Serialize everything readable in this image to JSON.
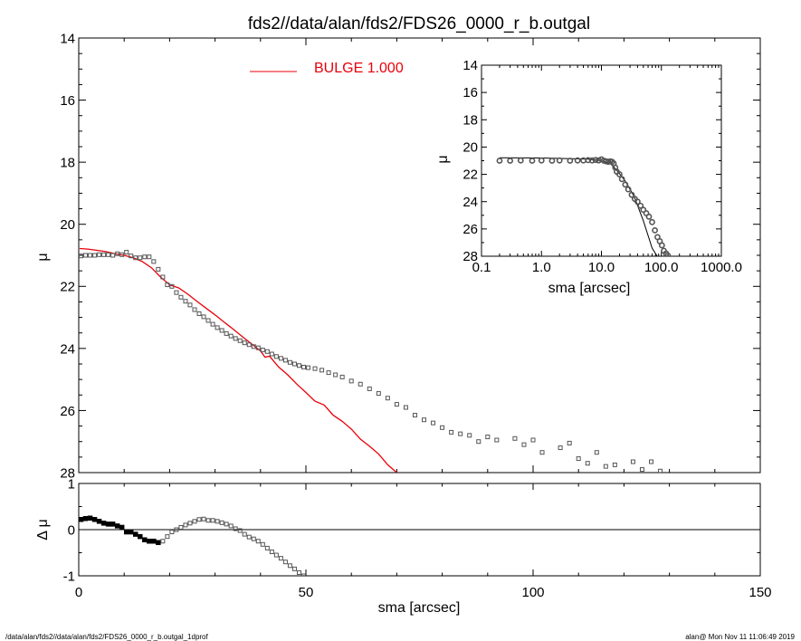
{
  "title": "fds2//data/alan/fds2/FDS26_0000_r_b.outgal",
  "footer": {
    "left": "/data/alan/fds2//data/alan/fds2/FDS26_0000_r_b.outgal_1dprof",
    "right": "alan@  Mon Nov 11 11:06:49 2019"
  },
  "colors": {
    "model": "#e8000b",
    "data": "#555555",
    "residual": "#000000"
  },
  "chart_data": [
    {
      "type": "scatter",
      "panel": "main",
      "title": "fds2//data/alan/fds2/FDS26_0000_r_b.outgal",
      "xlabel": "sma [arcsec]",
      "ylabel": "μ",
      "xlim": [
        0,
        150
      ],
      "ylim": [
        28,
        14
      ],
      "xticks": [
        "0",
        "50",
        "100",
        "150"
      ],
      "yticks": [
        "14",
        "16",
        "18",
        "20",
        "22",
        "24",
        "26",
        "28"
      ],
      "legend": {
        "position": "top-center",
        "entries": [
          {
            "label": "BULGE  1.000"
          }
        ]
      },
      "series": [
        {
          "kind": "line",
          "x": [
            0.2,
            2,
            4,
            6,
            8,
            10,
            12,
            14,
            16,
            18,
            20,
            22,
            24,
            26,
            28,
            30,
            32,
            34,
            36,
            38,
            40,
            41,
            42,
            44,
            46,
            48,
            50,
            52,
            54,
            56,
            58,
            60,
            62,
            64,
            66,
            68,
            70
          ],
          "y": [
            20.78,
            20.8,
            20.84,
            20.88,
            20.95,
            21.0,
            21.08,
            21.2,
            21.4,
            21.7,
            21.95,
            22.05,
            22.25,
            22.48,
            22.7,
            22.92,
            23.15,
            23.38,
            23.62,
            23.85,
            24.08,
            24.28,
            24.25,
            24.6,
            24.85,
            25.15,
            25.42,
            25.7,
            25.82,
            26.15,
            26.35,
            26.6,
            26.92,
            27.15,
            27.4,
            27.75,
            28.0
          ]
        },
        {
          "kind": "markers",
          "x": [
            0.5,
            1.5,
            2.5,
            3.5,
            4.5,
            5.5,
            6.5,
            7.5,
            8.5,
            9.5,
            10.5,
            11.5,
            12.5,
            13.5,
            14.5,
            15.5,
            16.5,
            17.5,
            18.5,
            19.5,
            20.5,
            21.5,
            22.5,
            23.5,
            24.5,
            25.5,
            26.5,
            27.5,
            28.5,
            29.5,
            30.5,
            31.5,
            32.5,
            33.5,
            34.5,
            35.5,
            36.5,
            37.5,
            38.5,
            39.5,
            40.5,
            41.5,
            42.5,
            43.5,
            44.5,
            45.5,
            46.5,
            47.5,
            48.5,
            49.5,
            50.5,
            52,
            53.5,
            55,
            56.5,
            58,
            60,
            62,
            64,
            66,
            68,
            70,
            72,
            74,
            76,
            78,
            80,
            82,
            84,
            86,
            88,
            90,
            92,
            96,
            98,
            100,
            102,
            106,
            108,
            110,
            112,
            114,
            116,
            118,
            122,
            124,
            126,
            128
          ],
          "y": [
            21.02,
            21.0,
            21.0,
            21.0,
            20.98,
            20.98,
            20.98,
            21.0,
            20.95,
            20.98,
            20.9,
            21.02,
            21.08,
            21.08,
            21.05,
            21.05,
            21.2,
            21.45,
            21.7,
            21.95,
            22.0,
            22.2,
            22.35,
            22.48,
            22.6,
            22.75,
            22.88,
            22.98,
            23.1,
            23.22,
            23.33,
            23.42,
            23.52,
            23.6,
            23.68,
            23.75,
            23.82,
            23.88,
            23.94,
            23.98,
            24.05,
            24.1,
            24.18,
            24.26,
            24.32,
            24.38,
            24.45,
            24.5,
            24.55,
            24.6,
            24.62,
            24.65,
            24.7,
            24.78,
            24.85,
            24.92,
            25.05,
            25.15,
            25.3,
            25.45,
            25.6,
            25.8,
            25.9,
            26.15,
            26.3,
            26.4,
            26.55,
            26.7,
            26.75,
            26.8,
            27.0,
            26.85,
            26.95,
            26.9,
            27.1,
            26.95,
            27.35,
            27.2,
            27.05,
            27.55,
            27.7,
            27.35,
            27.8,
            27.75,
            27.65,
            27.9,
            27.65,
            27.95
          ]
        }
      ]
    },
    {
      "type": "scatter",
      "panel": "inset",
      "xlabel": "sma [arcsec]",
      "ylabel": "μ",
      "xscale": "log",
      "xlim": [
        0.1,
        1000
      ],
      "ylim": [
        28,
        14
      ],
      "xticks": [
        "0.1",
        "1.0",
        "10.0",
        "100.0",
        "1000.0"
      ],
      "yticks": [
        "14",
        "16",
        "18",
        "20",
        "22",
        "24",
        "26",
        "28"
      ],
      "series": [
        {
          "kind": "line",
          "x": [
            0.2,
            1,
            3,
            6,
            10,
            14,
            18,
            25,
            35,
            50,
            70,
            85
          ],
          "y": [
            20.78,
            20.8,
            20.85,
            20.88,
            21.0,
            21.2,
            21.7,
            22.5,
            23.6,
            25.4,
            27.4,
            28.0
          ]
        },
        {
          "kind": "markers",
          "x": [
            0.2,
            0.3,
            0.45,
            0.7,
            1,
            1.5,
            2,
            3,
            4,
            5,
            6,
            7,
            8,
            9,
            10,
            11,
            12,
            13,
            14,
            15,
            16,
            17,
            18,
            20,
            22,
            25,
            28,
            32,
            36,
            40,
            45,
            50,
            56,
            62,
            70,
            78,
            86,
            94,
            102,
            110,
            120,
            128
          ],
          "y": [
            21.0,
            21.0,
            20.98,
            21.0,
            20.98,
            21.0,
            20.98,
            21.0,
            20.98,
            20.98,
            20.96,
            20.98,
            20.95,
            20.98,
            20.9,
            21.0,
            21.05,
            21.08,
            21.05,
            21.08,
            21.2,
            21.5,
            21.8,
            22.0,
            22.35,
            22.75,
            23.1,
            23.5,
            23.8,
            24.0,
            24.3,
            24.6,
            24.85,
            25.1,
            25.5,
            26.1,
            26.6,
            26.9,
            27.2,
            27.6,
            27.8,
            27.95
          ]
        }
      ]
    },
    {
      "type": "scatter",
      "panel": "residual",
      "xlabel": "sma [arcsec]",
      "ylabel": "Δ μ",
      "xlim": [
        0,
        150
      ],
      "ylim": [
        -1,
        1
      ],
      "xticks": [
        "0",
        "50",
        "100",
        "150"
      ],
      "yticks": [
        "1",
        "0",
        "-1"
      ],
      "reference_line": 0,
      "series": [
        {
          "kind": "markers",
          "x": [
            0.5,
            1.5,
            2.5,
            3.5,
            4.5,
            5.5,
            6.5,
            7.5,
            8.5,
            9.5,
            10.5,
            11.5,
            12.5,
            13.5,
            14.5,
            15.5,
            16.5,
            17.5,
            18.5,
            19.5,
            20.5,
            21.5,
            22.5,
            23.5,
            24.5,
            25.5,
            26.5,
            27.5,
            28.5,
            29.5,
            30.5,
            31.5,
            32.5,
            33.5,
            34.5,
            35.5,
            36.5,
            37.5,
            38.5,
            39.5,
            40.5,
            41.5,
            42.5,
            43.5,
            44.5,
            45.5,
            46.5,
            47.5,
            48.5,
            49.5
          ],
          "y": [
            0.22,
            0.24,
            0.25,
            0.22,
            0.18,
            0.14,
            0.12,
            0.12,
            0.08,
            0.05,
            -0.05,
            -0.05,
            -0.1,
            -0.15,
            -0.22,
            -0.25,
            -0.25,
            -0.28,
            -0.25,
            -0.15,
            -0.05,
            0.0,
            0.05,
            0.1,
            0.14,
            0.18,
            0.22,
            0.23,
            0.2,
            0.2,
            0.18,
            0.15,
            0.12,
            0.08,
            0.02,
            -0.02,
            -0.1,
            -0.16,
            -0.2,
            -0.25,
            -0.32,
            -0.4,
            -0.48,
            -0.55,
            -0.62,
            -0.7,
            -0.78,
            -0.85,
            -0.93,
            -1.0
          ]
        }
      ]
    }
  ]
}
